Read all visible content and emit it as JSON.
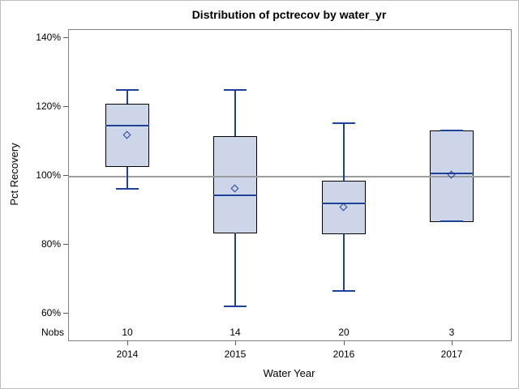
{
  "chart_data": {
    "type": "boxplot",
    "title": "Distribution of pctrecov by water_yr",
    "xlabel": "Water Year",
    "ylabel": "Pct Recovery",
    "nobs_label": "Nobs",
    "categories": [
      "2014",
      "2015",
      "2016",
      "2017"
    ],
    "nobs": [
      10,
      14,
      20,
      3
    ],
    "yticks": [
      140,
      120,
      100,
      80,
      60
    ],
    "ytick_labels": [
      "140%",
      "120%",
      "100%",
      "80%",
      "60%"
    ],
    "ylim": [
      52,
      142.5
    ],
    "reference_line": 100,
    "grid": "off",
    "legend": "none",
    "series": [
      {
        "category": "2014",
        "n": 10,
        "whisker_low": 96,
        "q1": 102.3,
        "median": 114.3,
        "mean": 111.5,
        "q3": 120.7,
        "whisker_high": 124.6
      },
      {
        "category": "2015",
        "n": 14,
        "whisker_low": 61.8,
        "q1": 83.2,
        "median": 94.2,
        "mean": 96,
        "q3": 111.4,
        "whisker_high": 124.7
      },
      {
        "category": "2016",
        "n": 20,
        "whisker_low": 66.3,
        "q1": 82.8,
        "median": 91.8,
        "mean": 90.7,
        "q3": 98.3,
        "whisker_high": 115
      },
      {
        "category": "2017",
        "n": 3,
        "whisker_low": 86.5,
        "q1": 86.5,
        "median": 100.5,
        "mean": 100,
        "q3": 113,
        "whisker_high": 113
      }
    ],
    "colors": {
      "box_fill": "#ccd6e8",
      "box_border": "#000000",
      "line_blue": "#1f419a",
      "reference_line": "#9c9c9c",
      "plot_border": "#848484",
      "tick": "#5a5a5a",
      "text": "#000000",
      "figure_border": "#bdbdbd"
    }
  }
}
